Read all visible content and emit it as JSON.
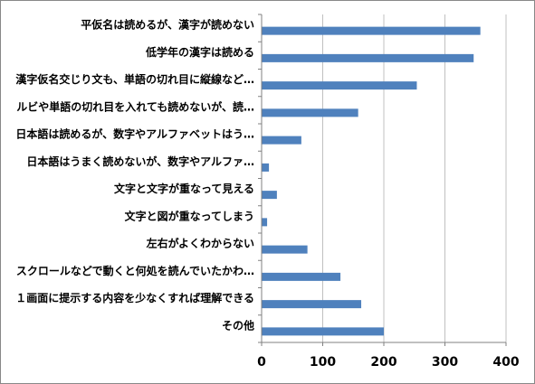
{
  "chart_data": {
    "type": "bar",
    "orientation": "horizontal",
    "categories": [
      "平仮名は読めるが、漢字が読めない",
      "低学年の漢字は読める",
      "漢字仮名交じり文も、単語の切れ目に縦線など…",
      "ルビや単語の切れ目を入れても読めないが、読…",
      "日本語は読めるが、数字やアルファベットはう…",
      "日本語はうまく読めないが、数字やアルファ…",
      "文字と文字が重なって見える",
      "文字と図が重なってしまう",
      "左右がよくわからない",
      "スクロールなどで動くと何処を読んでいたかわ…",
      "１画面に提示する内容を少なくすれば理解できる",
      "その他"
    ],
    "values": [
      358,
      347,
      254,
      158,
      65,
      12,
      25,
      9,
      75,
      129,
      163,
      200
    ],
    "xlim": [
      0,
      400
    ],
    "xticks": [
      0,
      100,
      200,
      300,
      400
    ],
    "grid": "vertical",
    "legend": "none",
    "bar_color": "#4F81BD",
    "grid_color": "#C0C0C0"
  }
}
